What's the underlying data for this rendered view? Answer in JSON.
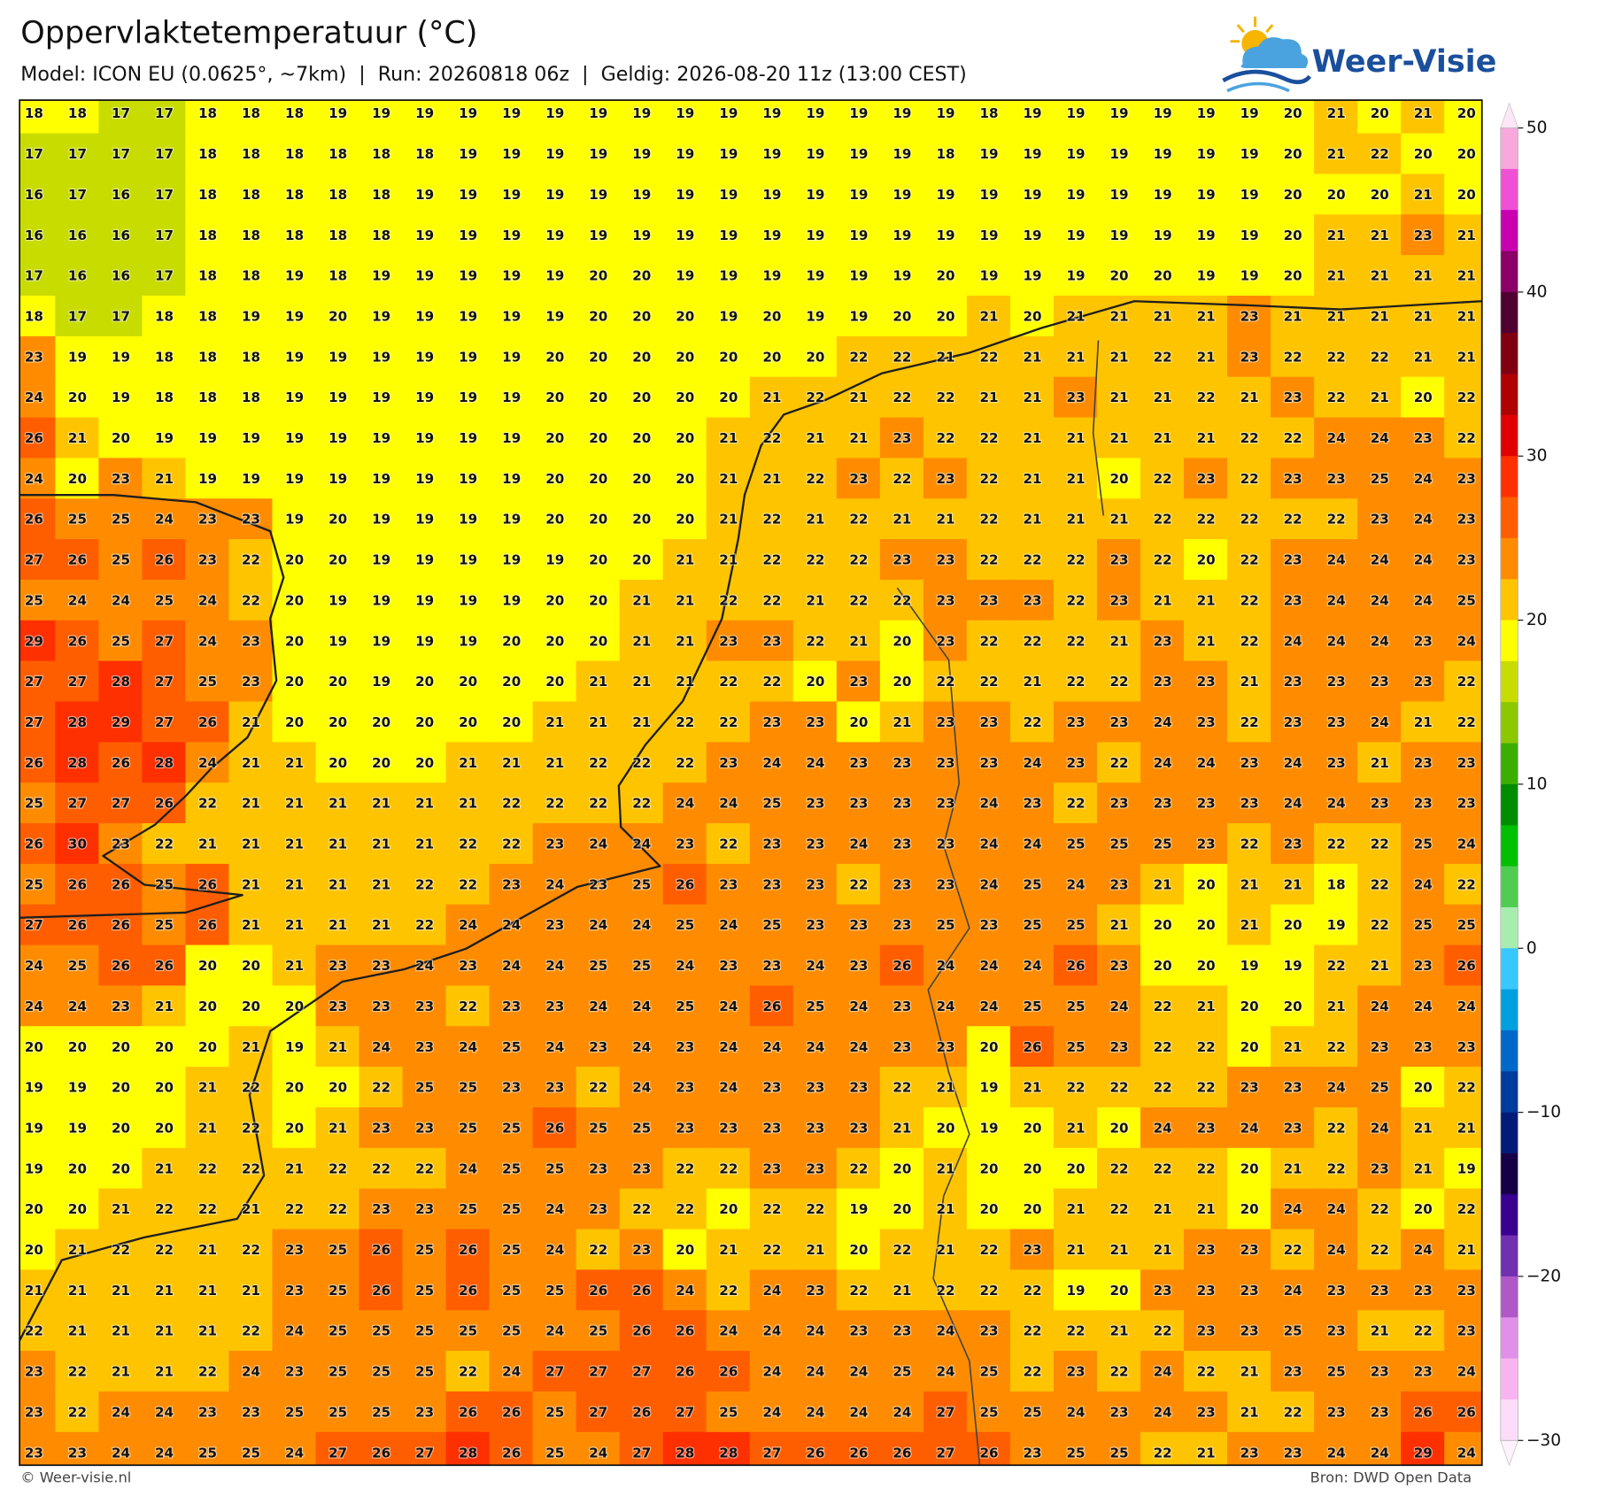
{
  "header": {
    "title": "Oppervlaktetemperatuur (°C)",
    "subtitle": "Model: ICON EU (0.0625°, ~7km)  |  Run: 20260818 06z  |  Geldig: 2026-08-20 11z (13:00 CEST)"
  },
  "logo": {
    "text": "Weer-Visie"
  },
  "grid": {
    "rows": [
      [
        18,
        18,
        17,
        17,
        18,
        18,
        18,
        19,
        19,
        19,
        19,
        19,
        19,
        19,
        19,
        19,
        19,
        19,
        19,
        19,
        19,
        19,
        18,
        19,
        19,
        19,
        19,
        19,
        19,
        20,
        21,
        20,
        21,
        20
      ],
      [
        17,
        17,
        17,
        17,
        18,
        18,
        18,
        18,
        18,
        18,
        19,
        19,
        19,
        19,
        19,
        19,
        19,
        19,
        19,
        19,
        19,
        18,
        19,
        19,
        19,
        19,
        19,
        19,
        19,
        20,
        21,
        22,
        20,
        20
      ],
      [
        16,
        17,
        16,
        17,
        18,
        18,
        18,
        18,
        18,
        19,
        19,
        19,
        19,
        19,
        19,
        19,
        19,
        19,
        19,
        19,
        19,
        19,
        19,
        19,
        19,
        19,
        19,
        19,
        19,
        20,
        20,
        20,
        21,
        20
      ],
      [
        16,
        16,
        16,
        17,
        18,
        18,
        18,
        18,
        18,
        19,
        19,
        19,
        19,
        19,
        19,
        19,
        19,
        19,
        19,
        19,
        19,
        19,
        19,
        19,
        19,
        19,
        19,
        19,
        19,
        20,
        21,
        21,
        23,
        21
      ],
      [
        17,
        16,
        16,
        17,
        18,
        18,
        19,
        18,
        19,
        19,
        19,
        19,
        19,
        20,
        20,
        19,
        19,
        19,
        19,
        19,
        19,
        20,
        19,
        19,
        19,
        20,
        20,
        19,
        19,
        20,
        21,
        21,
        21,
        21
      ],
      [
        18,
        17,
        17,
        18,
        18,
        19,
        19,
        20,
        19,
        19,
        19,
        19,
        19,
        20,
        20,
        20,
        19,
        20,
        19,
        19,
        20,
        20,
        21,
        20,
        21,
        21,
        21,
        21,
        23,
        21,
        21,
        21,
        21,
        21
      ],
      [
        23,
        19,
        19,
        18,
        18,
        18,
        19,
        19,
        19,
        19,
        19,
        19,
        20,
        20,
        20,
        20,
        20,
        20,
        20,
        22,
        22,
        21,
        22,
        21,
        21,
        21,
        22,
        21,
        23,
        22,
        22,
        22,
        21,
        21
      ],
      [
        24,
        20,
        19,
        18,
        18,
        18,
        19,
        19,
        19,
        19,
        19,
        19,
        20,
        20,
        20,
        20,
        20,
        21,
        22,
        21,
        22,
        22,
        21,
        21,
        23,
        21,
        21,
        22,
        21,
        23,
        22,
        21,
        20,
        22
      ],
      [
        26,
        21,
        20,
        19,
        19,
        19,
        19,
        19,
        19,
        19,
        19,
        19,
        20,
        20,
        20,
        20,
        21,
        22,
        21,
        21,
        23,
        22,
        22,
        21,
        21,
        21,
        21,
        21,
        22,
        22,
        24,
        24,
        23,
        22
      ],
      [
        24,
        20,
        23,
        21,
        19,
        19,
        19,
        19,
        19,
        19,
        19,
        19,
        20,
        20,
        20,
        20,
        21,
        21,
        22,
        23,
        22,
        23,
        22,
        21,
        21,
        20,
        22,
        23,
        22,
        23,
        23,
        25,
        24,
        23
      ],
      [
        26,
        25,
        25,
        24,
        23,
        23,
        19,
        20,
        19,
        19,
        19,
        19,
        20,
        20,
        20,
        20,
        21,
        22,
        21,
        22,
        21,
        21,
        22,
        21,
        21,
        21,
        22,
        22,
        22,
        22,
        22,
        23,
        24,
        23
      ],
      [
        27,
        26,
        25,
        26,
        23,
        22,
        20,
        20,
        19,
        19,
        19,
        19,
        19,
        20,
        20,
        21,
        21,
        22,
        22,
        22,
        23,
        23,
        22,
        22,
        22,
        23,
        22,
        20,
        22,
        23,
        24,
        24,
        24,
        23
      ],
      [
        25,
        24,
        24,
        25,
        24,
        22,
        20,
        19,
        19,
        19,
        19,
        19,
        20,
        20,
        21,
        21,
        22,
        22,
        21,
        22,
        22,
        23,
        23,
        23,
        22,
        23,
        21,
        21,
        22,
        23,
        24,
        24,
        24,
        25
      ],
      [
        29,
        26,
        25,
        27,
        24,
        23,
        20,
        19,
        19,
        19,
        19,
        20,
        20,
        20,
        21,
        21,
        23,
        23,
        22,
        21,
        20,
        23,
        22,
        22,
        22,
        21,
        23,
        21,
        22,
        24,
        24,
        24,
        23,
        24
      ],
      [
        27,
        27,
        28,
        27,
        25,
        23,
        20,
        20,
        19,
        20,
        20,
        20,
        20,
        21,
        21,
        21,
        22,
        22,
        20,
        23,
        20,
        22,
        22,
        21,
        22,
        22,
        23,
        23,
        21,
        23,
        23,
        23,
        23,
        22
      ],
      [
        27,
        28,
        29,
        27,
        26,
        21,
        20,
        20,
        20,
        20,
        20,
        20,
        21,
        21,
        21,
        22,
        22,
        23,
        23,
        20,
        21,
        23,
        23,
        22,
        23,
        23,
        24,
        23,
        22,
        23,
        23,
        24,
        21,
        22
      ],
      [
        26,
        28,
        26,
        28,
        24,
        21,
        21,
        20,
        20,
        20,
        21,
        21,
        21,
        22,
        22,
        22,
        23,
        24,
        24,
        23,
        23,
        23,
        23,
        24,
        23,
        22,
        24,
        24,
        23,
        24,
        23,
        21,
        23,
        23
      ],
      [
        25,
        27,
        27,
        26,
        22,
        21,
        21,
        21,
        21,
        21,
        21,
        22,
        22,
        22,
        22,
        24,
        24,
        25,
        23,
        23,
        23,
        23,
        24,
        23,
        22,
        23,
        23,
        23,
        23,
        24,
        24,
        23,
        23,
        23
      ],
      [
        26,
        30,
        23,
        22,
        21,
        21,
        21,
        21,
        21,
        21,
        22,
        22,
        23,
        24,
        24,
        23,
        22,
        23,
        23,
        24,
        23,
        23,
        24,
        24,
        25,
        25,
        25,
        23,
        22,
        23,
        22,
        22,
        25,
        24
      ],
      [
        25,
        26,
        26,
        25,
        26,
        21,
        21,
        21,
        21,
        22,
        22,
        23,
        24,
        23,
        25,
        26,
        23,
        23,
        23,
        22,
        23,
        23,
        24,
        25,
        24,
        23,
        21,
        20,
        21,
        21,
        18,
        22,
        24,
        22
      ],
      [
        27,
        26,
        26,
        25,
        26,
        21,
        21,
        21,
        21,
        22,
        24,
        24,
        23,
        24,
        24,
        25,
        24,
        25,
        23,
        23,
        23,
        25,
        23,
        25,
        25,
        21,
        20,
        20,
        21,
        20,
        19,
        22,
        25,
        25
      ],
      [
        24,
        25,
        26,
        26,
        20,
        20,
        21,
        23,
        23,
        24,
        23,
        24,
        24,
        25,
        25,
        24,
        23,
        23,
        24,
        23,
        26,
        24,
        24,
        24,
        26,
        23,
        20,
        20,
        19,
        19,
        22,
        21,
        23,
        26
      ],
      [
        24,
        24,
        23,
        21,
        20,
        20,
        20,
        23,
        23,
        23,
        22,
        23,
        23,
        24,
        24,
        25,
        24,
        26,
        25,
        24,
        23,
        24,
        24,
        25,
        25,
        24,
        22,
        21,
        20,
        20,
        21,
        24,
        24,
        24
      ],
      [
        20,
        20,
        20,
        20,
        20,
        21,
        19,
        21,
        24,
        23,
        24,
        25,
        24,
        23,
        24,
        23,
        24,
        24,
        24,
        24,
        23,
        23,
        20,
        26,
        25,
        23,
        22,
        22,
        20,
        21,
        22,
        23,
        23,
        23
      ],
      [
        19,
        19,
        20,
        20,
        21,
        22,
        20,
        20,
        22,
        25,
        25,
        23,
        23,
        22,
        24,
        23,
        24,
        23,
        23,
        23,
        22,
        21,
        19,
        21,
        22,
        22,
        22,
        22,
        23,
        23,
        24,
        25,
        20,
        22
      ],
      [
        19,
        19,
        20,
        20,
        21,
        22,
        20,
        21,
        23,
        23,
        25,
        25,
        26,
        25,
        25,
        23,
        23,
        23,
        23,
        23,
        21,
        20,
        19,
        20,
        21,
        20,
        24,
        23,
        24,
        23,
        22,
        24,
        21,
        21
      ],
      [
        19,
        20,
        20,
        21,
        22,
        22,
        21,
        22,
        22,
        22,
        24,
        25,
        25,
        23,
        23,
        22,
        22,
        23,
        23,
        22,
        20,
        21,
        20,
        20,
        20,
        22,
        22,
        22,
        20,
        21,
        22,
        23,
        21,
        19
      ],
      [
        20,
        20,
        21,
        22,
        22,
        21,
        22,
        22,
        23,
        23,
        25,
        25,
        24,
        23,
        22,
        22,
        20,
        22,
        22,
        19,
        20,
        21,
        20,
        20,
        21,
        22,
        21,
        21,
        20,
        24,
        24,
        22,
        20,
        22
      ],
      [
        20,
        21,
        22,
        22,
        21,
        22,
        23,
        25,
        26,
        25,
        26,
        25,
        24,
        22,
        23,
        20,
        21,
        22,
        21,
        20,
        22,
        21,
        22,
        23,
        21,
        21,
        21,
        23,
        23,
        22,
        24,
        22,
        24,
        21
      ],
      [
        21,
        21,
        21,
        21,
        21,
        21,
        23,
        25,
        26,
        25,
        26,
        25,
        25,
        26,
        26,
        24,
        22,
        24,
        23,
        22,
        21,
        22,
        22,
        22,
        19,
        20,
        23,
        23,
        23,
        24,
        23,
        23,
        23,
        23
      ],
      [
        22,
        21,
        21,
        21,
        21,
        22,
        24,
        25,
        25,
        25,
        25,
        25,
        24,
        25,
        26,
        26,
        24,
        24,
        24,
        23,
        23,
        24,
        23,
        22,
        22,
        21,
        22,
        23,
        23,
        25,
        23,
        21,
        22,
        23
      ],
      [
        23,
        22,
        21,
        21,
        22,
        24,
        23,
        25,
        25,
        25,
        22,
        24,
        27,
        27,
        27,
        26,
        26,
        24,
        24,
        24,
        25,
        24,
        25,
        22,
        23,
        22,
        24,
        22,
        21,
        23,
        25,
        23,
        23,
        24
      ],
      [
        23,
        22,
        24,
        24,
        23,
        23,
        25,
        25,
        25,
        23,
        26,
        26,
        25,
        27,
        26,
        27,
        25,
        24,
        24,
        24,
        24,
        27,
        25,
        25,
        24,
        23,
        24,
        23,
        21,
        22,
        23,
        23,
        26,
        26
      ],
      [
        23,
        23,
        24,
        24,
        25,
        25,
        24,
        27,
        26,
        27,
        28,
        26,
        25,
        24,
        27,
        28,
        28,
        27,
        26,
        26,
        26,
        27,
        26,
        23,
        25,
        25,
        22,
        21,
        23,
        23,
        24,
        24,
        29,
        24
      ]
    ]
  },
  "colorbar": {
    "ticks": [
      50,
      40,
      30,
      20,
      10,
      0,
      {
        "value": -10,
        "label": "−10"
      },
      {
        "value": -20,
        "label": "−20"
      },
      {
        "value": -30,
        "label": "−30"
      }
    ],
    "colors": [
      "#f8a8dc",
      "#f050d6",
      "#c800b0",
      "#8a0068",
      "#500030",
      "#800010",
      "#b00000",
      "#e00000",
      "#ff3000",
      "#ff5e00",
      "#ff8c00",
      "#ffc400",
      "#ffff00",
      "#c8dc00",
      "#8cc800",
      "#3cae00",
      "#008c00",
      "#00c000",
      "#50cc50",
      "#a8ecb0",
      "#38c8ff",
      "#00a0e0",
      "#0068c8",
      "#003c9c",
      "#001c78",
      "#180048",
      "#3a0090",
      "#7030b0",
      "#b058c8",
      "#e090e8",
      "#f8b4f0",
      "#fcdcf8"
    ],
    "over_color": "#fde6f6",
    "under_color": "#fff2fc"
  },
  "footer": {
    "left": "© Weer-visie.nl",
    "right": "Bron: DWD Open Data"
  }
}
